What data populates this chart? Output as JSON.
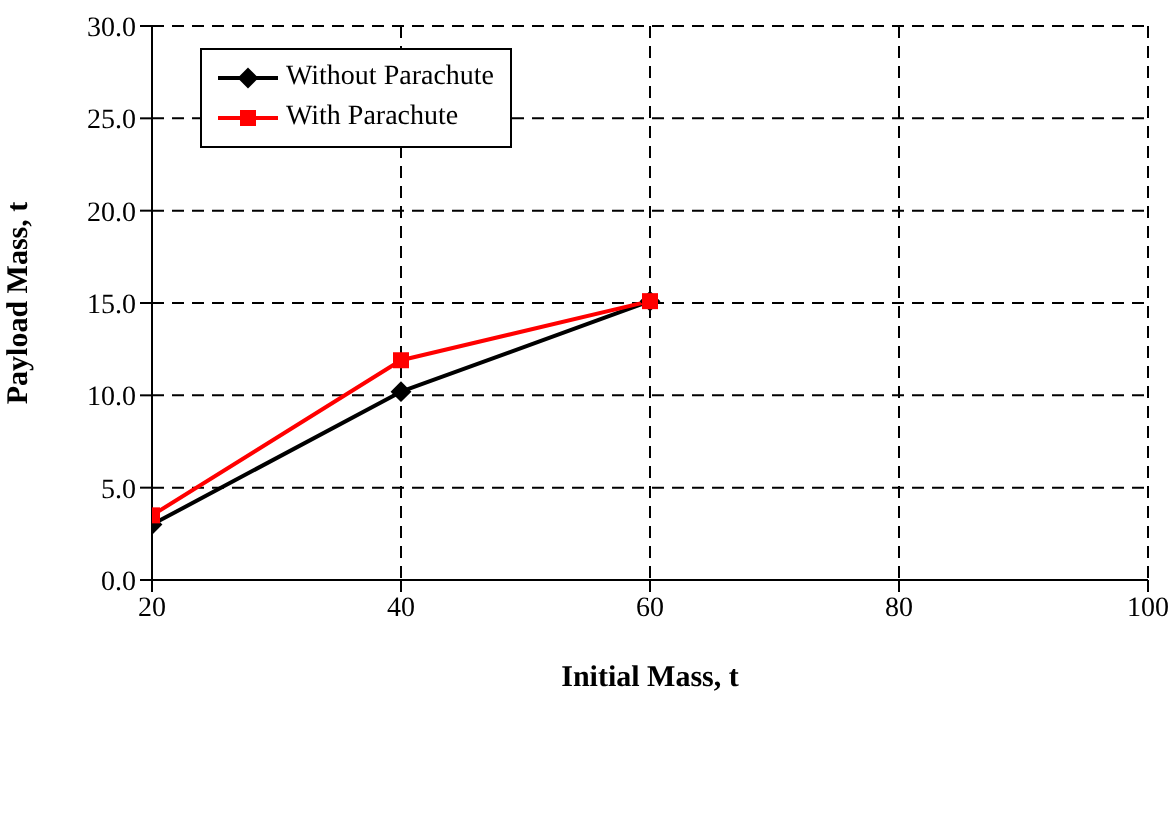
{
  "chart_data": {
    "type": "line",
    "xlabel": "Initial Mass, t",
    "ylabel": "Payload Mass, t",
    "xlim": [
      20,
      100
    ],
    "xticks": [
      20,
      40,
      60,
      80,
      100
    ],
    "ylim": [
      0,
      30
    ],
    "yticks": [
      {
        "value": 0,
        "label": "0.0"
      },
      {
        "value": 5,
        "label": "5.0"
      },
      {
        "value": 10,
        "label": "10.0"
      },
      {
        "value": 15,
        "label": "15.0"
      },
      {
        "value": 20,
        "label": "20.0"
      },
      {
        "value": 25,
        "label": "25.0"
      },
      {
        "value": 30,
        "label": "30.0"
      }
    ],
    "grid": true,
    "legend": "top left",
    "series": [
      {
        "name": "Without Parachute",
        "color": "#000000",
        "marker": "diamond",
        "x": [
          20,
          40,
          60
        ],
        "values": [
          3.0,
          10.2,
          15.1
        ]
      },
      {
        "name": "With Parachute",
        "color": "#ff0000",
        "marker": "square",
        "x": [
          20,
          40,
          60
        ],
        "values": [
          3.5,
          11.9,
          15.1
        ]
      }
    ]
  }
}
